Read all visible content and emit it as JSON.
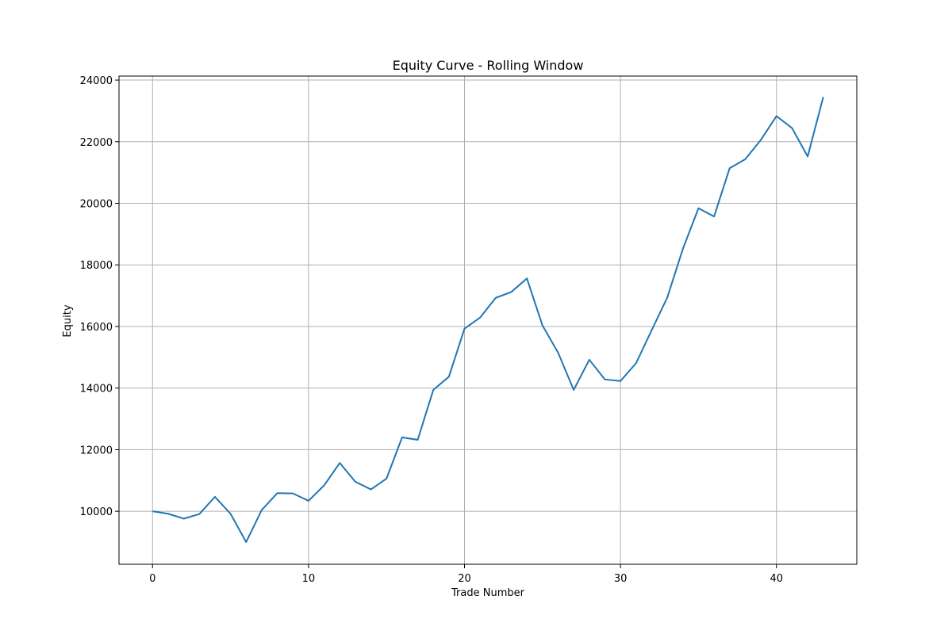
{
  "chart_data": {
    "type": "line",
    "title": "Equity Curve - Rolling Window",
    "xlabel": "Trade Number",
    "ylabel": "Equity",
    "xlim": [
      -2.15,
      45.15
    ],
    "ylim": [
      8280,
      24130
    ],
    "xticks": [
      0,
      10,
      20,
      30,
      40
    ],
    "yticks": [
      10000,
      12000,
      14000,
      16000,
      18000,
      20000,
      22000,
      24000
    ],
    "grid": true,
    "series": [
      {
        "color": "#1f77b4",
        "x": [
          0,
          1,
          2,
          3,
          4,
          5,
          6,
          7,
          8,
          9,
          10,
          11,
          12,
          13,
          14,
          15,
          16,
          17,
          18,
          19,
          20,
          21,
          22,
          23,
          24,
          25,
          26,
          27,
          28,
          29,
          30,
          31,
          32,
          33,
          34,
          35,
          36,
          37,
          38,
          39,
          40,
          41,
          42,
          43
        ],
        "values": [
          10000,
          9920,
          9760,
          9910,
          10470,
          9920,
          9000,
          10040,
          10590,
          10580,
          10340,
          10840,
          11570,
          10960,
          10710,
          11060,
          12400,
          12320,
          13940,
          14370,
          15930,
          16290,
          16930,
          17120,
          17560,
          16030,
          15150,
          13940,
          14920,
          14280,
          14230,
          14810,
          15880,
          16940,
          18520,
          19840,
          19570,
          21140,
          21430,
          22060,
          22830,
          22440,
          21520,
          23450
        ]
      }
    ]
  }
}
